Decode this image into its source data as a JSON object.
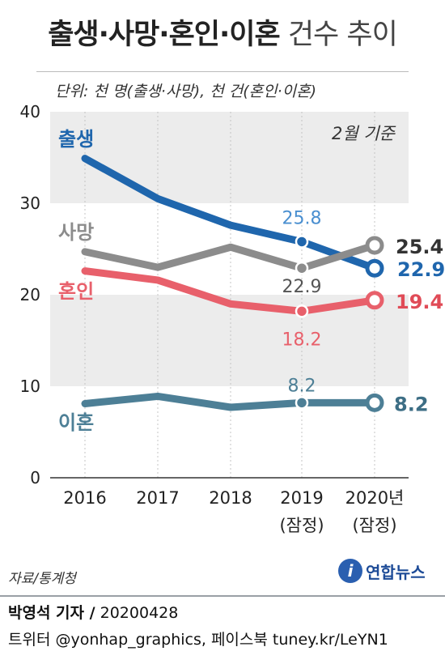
{
  "title": {
    "bold": "출생·사망·혼인·이혼",
    "light": "건수 추이"
  },
  "unit_note": "단위: 천 명(출생·사망), 천 건(혼인·이혼)",
  "basis_note": "2월 기준",
  "source": "자료/통계청",
  "logo": {
    "mark": "i",
    "text": "연합뉴스"
  },
  "reporter": {
    "name": "박영석 기자 /",
    "date": "20200428"
  },
  "social": "트위터 @yonhap_graphics, 페이스북 tuney.kr/LeYN1",
  "chart_data": {
    "type": "line",
    "title": "출생·사망·혼인·이혼 건수 추이",
    "categories": [
      "2016",
      "2017",
      "2018",
      "2019",
      "2020"
    ],
    "category_labels": [
      [
        "2016"
      ],
      [
        "2017"
      ],
      [
        "2018"
      ],
      [
        "2019",
        "(잠정)"
      ],
      [
        "2020년",
        "(잠정)"
      ]
    ],
    "y_ticks": [
      "0",
      "10",
      "20",
      "30",
      "40"
    ],
    "ylim": [
      0,
      40
    ],
    "shaded_bands": [
      [
        10,
        20
      ],
      [
        30,
        40
      ]
    ],
    "series": [
      {
        "name": "출생",
        "color": "#1f66ad",
        "values": [
          34.9,
          30.5,
          27.6,
          25.8,
          22.9
        ],
        "labels": [
          null,
          null,
          null,
          "25.8",
          "22.9"
        ],
        "label_colors": [
          null,
          null,
          null,
          "#4a8fd0",
          "#1f66ad"
        ]
      },
      {
        "name": "사망",
        "color": "#8c8c8c",
        "values": [
          24.7,
          23.0,
          25.2,
          22.9,
          25.4
        ],
        "labels": [
          null,
          null,
          null,
          "22.9",
          "25.4"
        ],
        "label_colors": [
          null,
          null,
          null,
          "#555555",
          "#333333"
        ]
      },
      {
        "name": "혼인",
        "color": "#e8606b",
        "values": [
          22.6,
          21.6,
          19.0,
          18.2,
          19.4
        ],
        "labels": [
          null,
          null,
          null,
          "18.2",
          "19.4"
        ],
        "label_colors": [
          null,
          null,
          null,
          "#e8606b",
          "#e04b57"
        ]
      },
      {
        "name": "이혼",
        "color": "#4d7f96",
        "values": [
          8.1,
          8.9,
          7.7,
          8.2,
          8.2
        ],
        "labels": [
          null,
          null,
          null,
          "8.2",
          "8.2"
        ],
        "label_colors": [
          null,
          null,
          null,
          "#4d7f96",
          "#3d6e85"
        ]
      }
    ]
  }
}
